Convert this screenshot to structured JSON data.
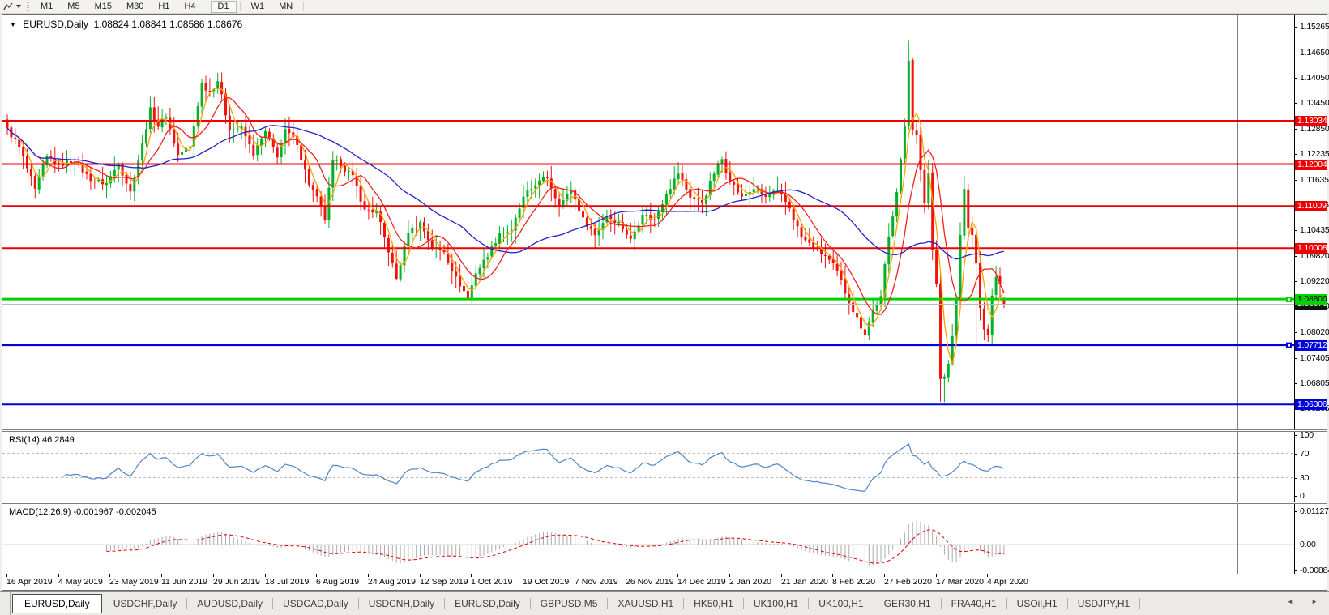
{
  "toolbar": {
    "indicator_button_icon": "zigzag-chart-icon",
    "timeframes": [
      "M1",
      "M5",
      "M15",
      "M30",
      "H1",
      "H4",
      "D1",
      "W1",
      "MN"
    ],
    "active_timeframe": "D1"
  },
  "title": {
    "collapse_icon": "▼",
    "symbol": "EURUSD,Daily",
    "open": "1.08824",
    "high": "1.08841",
    "low": "1.08586",
    "close": "1.08676"
  },
  "price_axis": {
    "ticks": [
      {
        "label": "1.15265",
        "price": 1.15265
      },
      {
        "label": "1.14650",
        "price": 1.1465
      },
      {
        "label": "1.14050",
        "price": 1.1405
      },
      {
        "label": "1.13450",
        "price": 1.1345
      },
      {
        "label": "1.12850",
        "price": 1.1285
      },
      {
        "label": "1.12235",
        "price": 1.12235
      },
      {
        "label": "1.11635",
        "price": 1.11635
      },
      {
        "label": "1.11035",
        "price": 1.11035
      },
      {
        "label": "1.10435",
        "price": 1.10435
      },
      {
        "label": "1.09820",
        "price": 1.0982
      },
      {
        "label": "1.09220",
        "price": 1.0922
      },
      {
        "label": "1.08620",
        "price": 1.0862
      },
      {
        "label": "1.08020",
        "price": 1.0802
      },
      {
        "label": "1.07405",
        "price": 1.07405
      },
      {
        "label": "1.06805",
        "price": 1.06805
      },
      {
        "label": "1.06205",
        "price": 1.06205
      }
    ]
  },
  "current_price": {
    "label": "1.08676",
    "price": 1.08676,
    "line_color": "#bbbbbb",
    "box_color": "#111111",
    "text_color": "#ffffff"
  },
  "levels": [
    {
      "label": "1.13034",
      "price": 1.13034,
      "color": "#ee0000",
      "text_color": "#ffffff",
      "width": 2,
      "handle": false
    },
    {
      "label": "1.12004",
      "price": 1.12004,
      "color": "#ee0000",
      "text_color": "#ffffff",
      "width": 2,
      "handle": false
    },
    {
      "label": "1.11009",
      "price": 1.11009,
      "color": "#ee0000",
      "text_color": "#ffffff",
      "width": 2,
      "handle": false
    },
    {
      "label": "1.10008",
      "price": 1.10008,
      "color": "#ee0000",
      "text_color": "#ffffff",
      "width": 2,
      "handle": false
    },
    {
      "label": "1.08800",
      "price": 1.088,
      "color": "#00d300",
      "text_color": "#000000",
      "width": 3,
      "handle": true
    },
    {
      "label": "1.07712",
      "price": 1.07712,
      "color": "#0000dd",
      "text_color": "#ffffff",
      "width": 3,
      "handle": true
    },
    {
      "label": "1.06306",
      "price": 1.06306,
      "color": "#0000dd",
      "text_color": "#ffffff",
      "width": 3,
      "handle": false
    }
  ],
  "rsi_panel": {
    "label": "RSI(14) 46.2849",
    "line_color": "#4e86c8",
    "level_line_color": "#b8b8b8",
    "ticks": [
      {
        "label": "100",
        "value": 100
      },
      {
        "label": "70",
        "value": 70
      },
      {
        "label": "30",
        "value": 30
      },
      {
        "label": "0",
        "value": 0
      }
    ],
    "levels": [
      70,
      30
    ]
  },
  "macd_panel": {
    "label": "MACD(12,26,9) -0.001967 -0.002045",
    "histogram_color": "#ababab",
    "signal_color": "#e00000",
    "ticks": [
      {
        "label": "0.011277",
        "value": 0.011277
      },
      {
        "label": "0.00",
        "value": 0
      },
      {
        "label": "-0.008845",
        "value": -0.008845
      }
    ]
  },
  "date_axis": {
    "labels": [
      {
        "text": "16 Apr 2019",
        "index": 0
      },
      {
        "text": "4 May 2019",
        "index": 13
      },
      {
        "text": "23 May 2019",
        "index": 26
      },
      {
        "text": "11 Jun 2019",
        "index": 39
      },
      {
        "text": "29 Jun 2019",
        "index": 52
      },
      {
        "text": "18 Jul 2019",
        "index": 65
      },
      {
        "text": "6 Aug 2019",
        "index": 78
      },
      {
        "text": "24 Aug 2019",
        "index": 91
      },
      {
        "text": "12 Sep 2019",
        "index": 104
      },
      {
        "text": "1 Oct 2019",
        "index": 117
      },
      {
        "text": "19 Oct 2019",
        "index": 130
      },
      {
        "text": "7 Nov 2019",
        "index": 143
      },
      {
        "text": "26 Nov 2019",
        "index": 156
      },
      {
        "text": "14 Dec 2019",
        "index": 169
      },
      {
        "text": "2 Jan 2020",
        "index": 182
      },
      {
        "text": "21 Jan 2020",
        "index": 195
      },
      {
        "text": "8 Feb 2020",
        "index": 208
      },
      {
        "text": "27 Feb 2020",
        "index": 221
      },
      {
        "text": "17 Mar 2020",
        "index": 234
      },
      {
        "text": "4 Apr 2020",
        "index": 247
      }
    ]
  },
  "tabs": {
    "active_index": 0,
    "items": [
      "EURUSD,Daily",
      "USDCHF,Daily",
      "AUDUSD,Daily",
      "USDCAD,Daily",
      "USDCNH,Daily",
      "EURUSD,Daily",
      "GBPUSD,M5",
      "XAUUSD,H1",
      "HK50,H1",
      "UK100,H1",
      "UK100,H1",
      "GER30,H1",
      "FRA40,H1",
      "USOil,H1",
      "USDJPY,H1"
    ],
    "scroll_left_icon": "◄",
    "scroll_right_icon": "►"
  },
  "chart_data": {
    "type": "candlestick",
    "title": "EURUSD,Daily",
    "symbol": "EURUSD",
    "timeframe": "Daily",
    "x_range": [
      "16 Apr 2019",
      "14 Apr 2020"
    ],
    "y_range": [
      1.0575,
      1.1555
    ],
    "num_candles": 252,
    "up_color": "#00b228",
    "down_color": "#f31111",
    "close_anchors": [
      [
        0,
        1.1285
      ],
      [
        3,
        1.124
      ],
      [
        7,
        1.114
      ],
      [
        10,
        1.1218
      ],
      [
        13,
        1.12
      ],
      [
        17,
        1.1208
      ],
      [
        21,
        1.1162
      ],
      [
        25,
        1.1155
      ],
      [
        28,
        1.1202
      ],
      [
        31,
        1.1135
      ],
      [
        34,
        1.1248
      ],
      [
        36,
        1.1333
      ],
      [
        38,
        1.129
      ],
      [
        40,
        1.1312
      ],
      [
        43,
        1.1222
      ],
      [
        46,
        1.1242
      ],
      [
        49,
        1.1392
      ],
      [
        51,
        1.1372
      ],
      [
        53,
        1.1398
      ],
      [
        56,
        1.1282
      ],
      [
        59,
        1.1288
      ],
      [
        62,
        1.1222
      ],
      [
        65,
        1.1278
      ],
      [
        68,
        1.1218
      ],
      [
        70,
        1.1282
      ],
      [
        73,
        1.1248
      ],
      [
        76,
        1.1152
      ],
      [
        78,
        1.1122
      ],
      [
        80,
        1.1068
      ],
      [
        82,
        1.1208
      ],
      [
        84,
        1.1198
      ],
      [
        87,
        1.1172
      ],
      [
        90,
        1.1092
      ],
      [
        93,
        1.1088
      ],
      [
        96,
        1.0992
      ],
      [
        98,
        1.0928
      ],
      [
        101,
        1.1038
      ],
      [
        104,
        1.1062
      ],
      [
        107,
        1.1002
      ],
      [
        110,
        1.0992
      ],
      [
        113,
        1.0932
      ],
      [
        116,
        1.0882
      ],
      [
        118,
        1.0942
      ],
      [
        121,
        1.0982
      ],
      [
        124,
        1.1038
      ],
      [
        127,
        1.1042
      ],
      [
        130,
        1.1122
      ],
      [
        133,
        1.1152
      ],
      [
        136,
        1.1168
      ],
      [
        139,
        1.1102
      ],
      [
        142,
        1.1138
      ],
      [
        145,
        1.1072
      ],
      [
        148,
        1.1032
      ],
      [
        151,
        1.1078
      ],
      [
        154,
        1.1062
      ],
      [
        157,
        1.1022
      ],
      [
        160,
        1.1082
      ],
      [
        163,
        1.1068
      ],
      [
        166,
        1.1132
      ],
      [
        169,
        1.1178
      ],
      [
        172,
        1.1122
      ],
      [
        175,
        1.1108
      ],
      [
        178,
        1.1178
      ],
      [
        180,
        1.1212
      ],
      [
        182,
        1.1162
      ],
      [
        185,
        1.1122
      ],
      [
        188,
        1.1142
      ],
      [
        191,
        1.1122
      ],
      [
        194,
        1.1138
      ],
      [
        197,
        1.1096
      ],
      [
        200,
        1.1026
      ],
      [
        203,
        1.1002
      ],
      [
        206,
        1.0982
      ],
      [
        209,
        1.0946
      ],
      [
        212,
        1.0872
      ],
      [
        214,
        1.0836
      ],
      [
        216,
        1.0796
      ],
      [
        218,
        1.0852
      ],
      [
        220,
        1.0886
      ],
      [
        222,
        1.1028
      ],
      [
        224,
        1.1136
      ],
      [
        226,
        1.1288
      ],
      [
        227,
        1.1446
      ],
      [
        228,
        1.1282
      ],
      [
        229,
        1.1271
      ],
      [
        230,
        1.1185
      ],
      [
        231,
        1.1106
      ],
      [
        232,
        1.1181
      ],
      [
        233,
        1.0996
      ],
      [
        234,
        1.0916
      ],
      [
        235,
        1.0692
      ],
      [
        236,
        1.0696
      ],
      [
        237,
        1.0727
      ],
      [
        238,
        1.0791
      ],
      [
        239,
        1.0881
      ],
      [
        240,
        1.1031
      ],
      [
        241,
        1.1141
      ],
      [
        242,
        1.1048
      ],
      [
        243,
        1.1032
      ],
      [
        244,
        1.0966
      ],
      [
        245,
        1.0857
      ],
      [
        246,
        1.0809
      ],
      [
        247,
        1.0792
      ],
      [
        248,
        1.089
      ],
      [
        249,
        1.0931
      ],
      [
        250,
        1.0914
      ],
      [
        251,
        1.0868
      ]
    ],
    "wick_overrides": {
      "98": {
        "low": 1.0926
      },
      "116": {
        "low": 1.0879
      },
      "227": {
        "high": 1.1495
      },
      "235": {
        "low": 1.0636
      },
      "236": {
        "low": 1.0635
      },
      "244": {
        "low": 1.0768
      }
    },
    "last_candle": {
      "open": 1.08824,
      "high": 1.08841,
      "low": 1.08586,
      "close": 1.08676
    },
    "ma_lines": [
      {
        "type": "sma",
        "period": 4,
        "color": "#ffa200",
        "name": "fast-ma"
      },
      {
        "type": "sma",
        "period": 9,
        "color": "#ee2222",
        "name": "medium-ma"
      },
      {
        "type": "sma",
        "period": 34,
        "color": "#2222cc",
        "name": "slow-ma"
      }
    ],
    "indicators": [
      {
        "name": "RSI",
        "period": 14,
        "current": 46.2849
      },
      {
        "name": "MACD",
        "fast": 12,
        "slow": 26,
        "signal": 9,
        "current_macd": -0.001967,
        "current_signal": -0.002045
      }
    ],
    "vertical_line_index": 310,
    "grid": false,
    "legend_position": "none"
  }
}
